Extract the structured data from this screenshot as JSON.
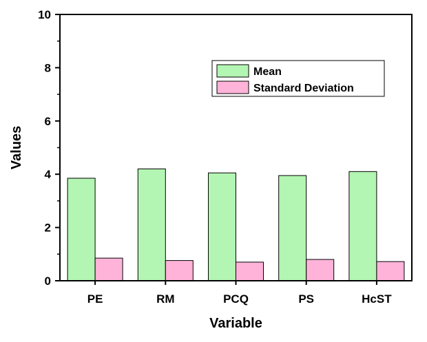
{
  "chart_data": {
    "type": "bar",
    "categories": [
      "PE",
      "RM",
      "PCQ",
      "PS",
      "HcST"
    ],
    "series": [
      {
        "name": "Mean",
        "values": [
          3.85,
          4.2,
          4.05,
          3.95,
          4.1
        ],
        "color": "#b3f5b3"
      },
      {
        "name": "Standard Deviation",
        "values": [
          0.85,
          0.76,
          0.7,
          0.8,
          0.72
        ],
        "color": "#ffb3d9"
      }
    ],
    "xlabel": "Variable",
    "ylabel": "Values",
    "ylim": [
      0,
      10
    ],
    "yticks": [
      "0",
      "2",
      "4",
      "6",
      "8",
      "10"
    ],
    "grid": false,
    "legend_position": "top-right"
  }
}
